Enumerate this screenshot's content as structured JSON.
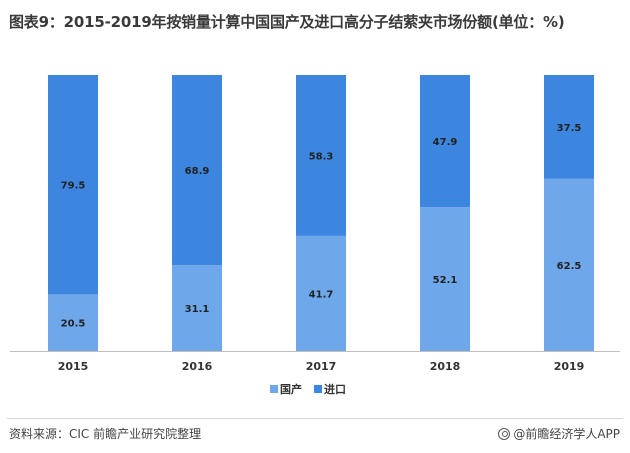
{
  "title": "图表9：2015-2019年按销量计算中国国产及进口高分子结萦夹市场份额(单位：%)",
  "source": "资料来源：CIC  前瞻产业研究院整理",
  "brand": "@前瞻经济学人APP",
  "colors": {
    "domestic": "#6fa7eb",
    "import": "#3d86e0",
    "axis": "#bfbfbf",
    "label": "#222222"
  },
  "chart_data": {
    "type": "bar",
    "stacked": true,
    "categories": [
      "2015",
      "2016",
      "2017",
      "2018",
      "2019"
    ],
    "series": [
      {
        "name": "国产",
        "values": [
          20.5,
          31.1,
          41.7,
          52.1,
          62.5
        ]
      },
      {
        "name": "进口",
        "values": [
          79.5,
          68.9,
          58.3,
          47.9,
          37.5
        ]
      }
    ],
    "ylim": [
      0,
      100
    ],
    "legend_position": "bottom",
    "grid": false
  }
}
